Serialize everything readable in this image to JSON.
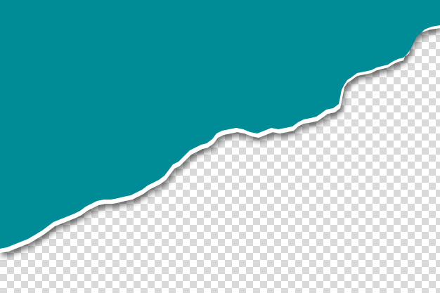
{
  "colors": {
    "paper": "#008c97",
    "torn_edge": "#ffffff",
    "checker_light": "#ffffff",
    "checker_dark": "#d9d9d9",
    "shadow": "#000000"
  },
  "elements": {
    "background": "transparency-checkerboard",
    "foreground": "torn-teal-paper"
  }
}
